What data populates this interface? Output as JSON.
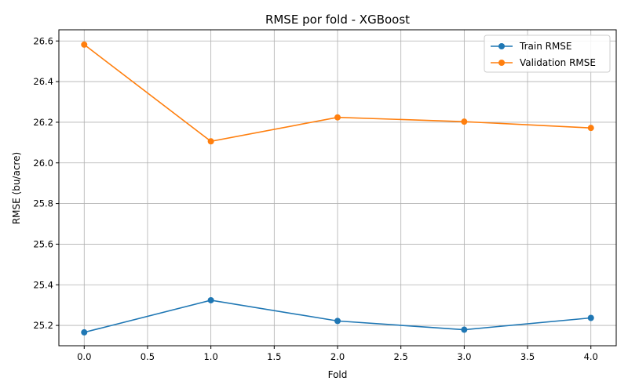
{
  "chart_data": {
    "type": "line",
    "title": "RMSE por fold - XGBoost",
    "xlabel": "Fold",
    "ylabel": "RMSE (bu/acre)",
    "xlim": [
      -0.2,
      4.2
    ],
    "ylim": [
      25.1,
      26.655
    ],
    "x_ticks": [
      0.0,
      0.5,
      1.0,
      1.5,
      2.0,
      2.5,
      3.0,
      3.5,
      4.0
    ],
    "x_tick_labels": [
      "0.0",
      "0.5",
      "1.0",
      "1.5",
      "2.0",
      "2.5",
      "3.0",
      "3.5",
      "4.0"
    ],
    "y_ticks": [
      25.2,
      25.4,
      25.6,
      25.8,
      26.0,
      26.2,
      26.4,
      26.6
    ],
    "y_tick_labels": [
      "25.2",
      "25.4",
      "25.6",
      "25.8",
      "26.0",
      "26.2",
      "26.4",
      "26.6"
    ],
    "grid": true,
    "legend_position": "top-right",
    "x": [
      0,
      1,
      2,
      3,
      4
    ],
    "series": [
      {
        "name": "Train RMSE",
        "color": "#1f77b4",
        "marker": "circle",
        "values": [
          25.166,
          25.324,
          25.222,
          25.179,
          25.237
        ]
      },
      {
        "name": "Validation RMSE",
        "color": "#ff7f0e",
        "marker": "circle",
        "values": [
          26.582,
          26.106,
          26.224,
          26.203,
          26.172
        ]
      }
    ]
  }
}
